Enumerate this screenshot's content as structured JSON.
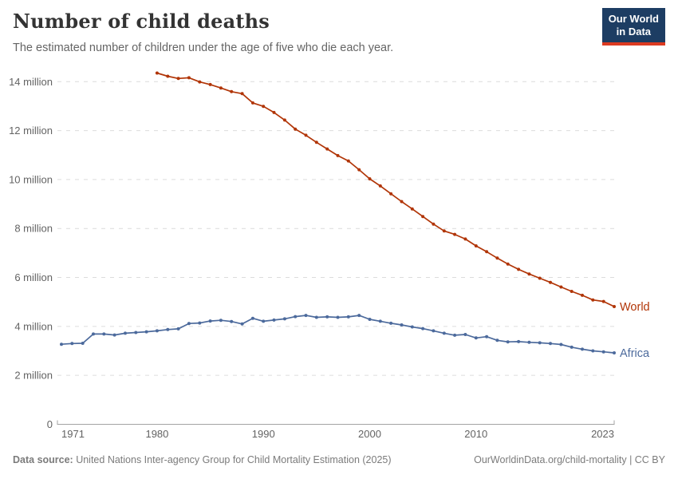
{
  "logo": {
    "line1": "Our World",
    "line2": "in Data",
    "bg_color": "#1d3d63",
    "accent_color": "#dc3a21"
  },
  "footer": {
    "source_label": "Data source:",
    "source_text": " United Nations Inter-agency Group for Child Mortality Estimation (2025)",
    "credit": "OurWorldinData.org/child-mortality | CC BY"
  },
  "chart_data": {
    "type": "line",
    "title": "Number of child deaths",
    "subtitle": "The estimated number of children under the age of five who die each year.",
    "unit": "deaths per year (millions)",
    "grid": "horizontal dashed gridlines",
    "legend_position": "end-of-line labels",
    "xlim": [
      1971,
      2023
    ],
    "ylim_millions": [
      0,
      14
    ],
    "x_tick_years": [
      1971,
      1980,
      1990,
      2000,
      2010,
      2023
    ],
    "y_ticks": [
      {
        "value": 0,
        "label": "0"
      },
      {
        "value": 2,
        "label": "2 million"
      },
      {
        "value": 4,
        "label": "4 million"
      },
      {
        "value": 6,
        "label": "6 million"
      },
      {
        "value": 8,
        "label": "8 million"
      },
      {
        "value": 10,
        "label": "10 million"
      },
      {
        "value": 12,
        "label": "12 million"
      },
      {
        "value": 14,
        "label": "14 million"
      }
    ],
    "axis_color": "#a3a3a3",
    "gridline_color": "#dcdcdc",
    "tick_label_color": "#636363",
    "series": [
      {
        "name": "World",
        "color": "#b13507",
        "start_year": 1980,
        "end_year": 2023,
        "values_millions": [
          14.35,
          14.22,
          14.13,
          14.16,
          13.99,
          13.88,
          13.74,
          13.59,
          13.51,
          13.13,
          12.99,
          12.74,
          12.43,
          12.06,
          11.81,
          11.52,
          11.25,
          10.98,
          10.76,
          10.4,
          10.03,
          9.74,
          9.42,
          9.1,
          8.8,
          8.49,
          8.18,
          7.9,
          7.76,
          7.57,
          7.29,
          7.05,
          6.79,
          6.55,
          6.33,
          6.14,
          5.97,
          5.8,
          5.61,
          5.43,
          5.27,
          5.08,
          5.02,
          4.81
        ]
      },
      {
        "name": "Africa",
        "color": "#4c6a9c",
        "start_year": 1971,
        "end_year": 2023,
        "values_millions": [
          3.27,
          3.3,
          3.31,
          3.69,
          3.69,
          3.65,
          3.72,
          3.75,
          3.78,
          3.82,
          3.87,
          3.9,
          4.12,
          4.14,
          4.22,
          4.25,
          4.2,
          4.1,
          4.33,
          4.21,
          4.26,
          4.31,
          4.4,
          4.45,
          4.37,
          4.39,
          4.37,
          4.39,
          4.45,
          4.29,
          4.21,
          4.13,
          4.06,
          3.98,
          3.91,
          3.82,
          3.72,
          3.64,
          3.67,
          3.53,
          3.58,
          3.43,
          3.37,
          3.38,
          3.35,
          3.33,
          3.3,
          3.26,
          3.15,
          3.07,
          3.0,
          2.96,
          2.92
        ]
      }
    ]
  }
}
